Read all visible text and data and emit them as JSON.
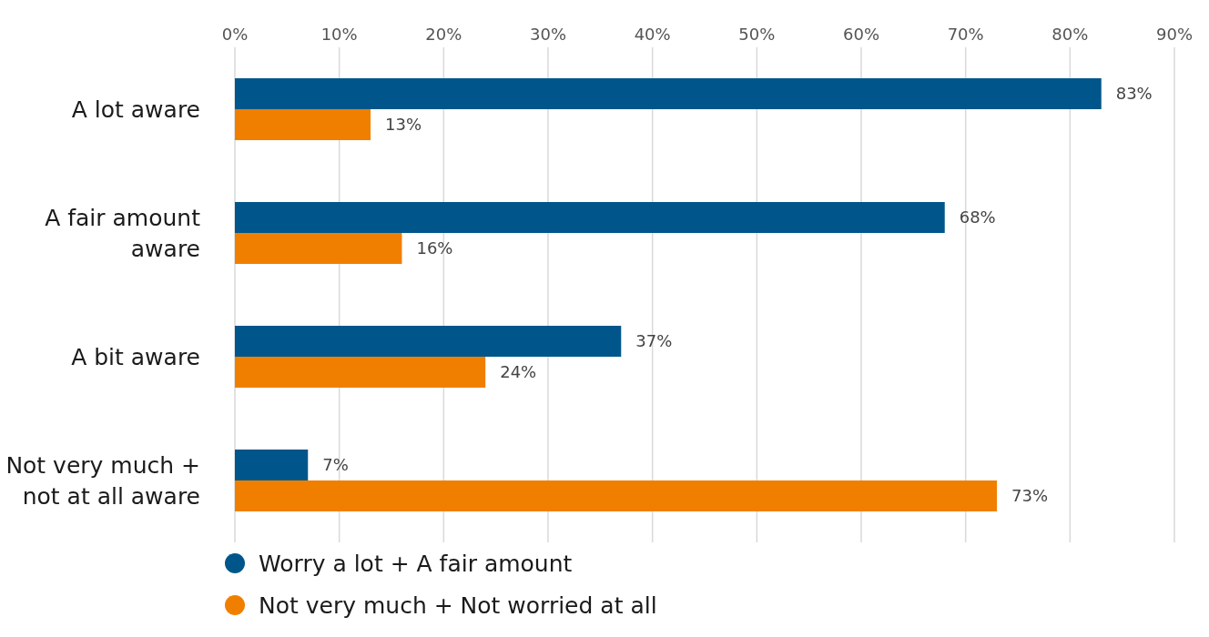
{
  "chart_data": {
    "type": "bar",
    "orientation": "horizontal",
    "categories": [
      "A lot aware",
      "A fair amount aware",
      "A bit aware",
      "Not very much + not at all aware"
    ],
    "series": [
      {
        "name": "Worry a lot + A fair amount",
        "color": "#00568a",
        "values": [
          83,
          68,
          37,
          7
        ],
        "value_labels": [
          "83%",
          "68%",
          "37%",
          "7%"
        ]
      },
      {
        "name": "Not very much + Not worried at all",
        "color": "#f07f00",
        "values": [
          13,
          16,
          24,
          73
        ],
        "value_labels": [
          "13%",
          "16%",
          "24%",
          "73%"
        ]
      }
    ],
    "xlim": [
      0,
      90
    ],
    "xticks": [
      {
        "value": 0,
        "label": "0%"
      },
      {
        "value": 10,
        "label": "10%"
      },
      {
        "value": 20,
        "label": "20%"
      },
      {
        "value": 30,
        "label": "30%"
      },
      {
        "value": 40,
        "label": "40%"
      },
      {
        "value": 50,
        "label": "50%"
      },
      {
        "value": 60,
        "label": "60%"
      },
      {
        "value": 70,
        "label": "70%"
      },
      {
        "value": 80,
        "label": "80%"
      },
      {
        "value": 90,
        "label": "90%"
      }
    ],
    "grid": "x",
    "legend": "bottom left",
    "marker": "circle"
  }
}
